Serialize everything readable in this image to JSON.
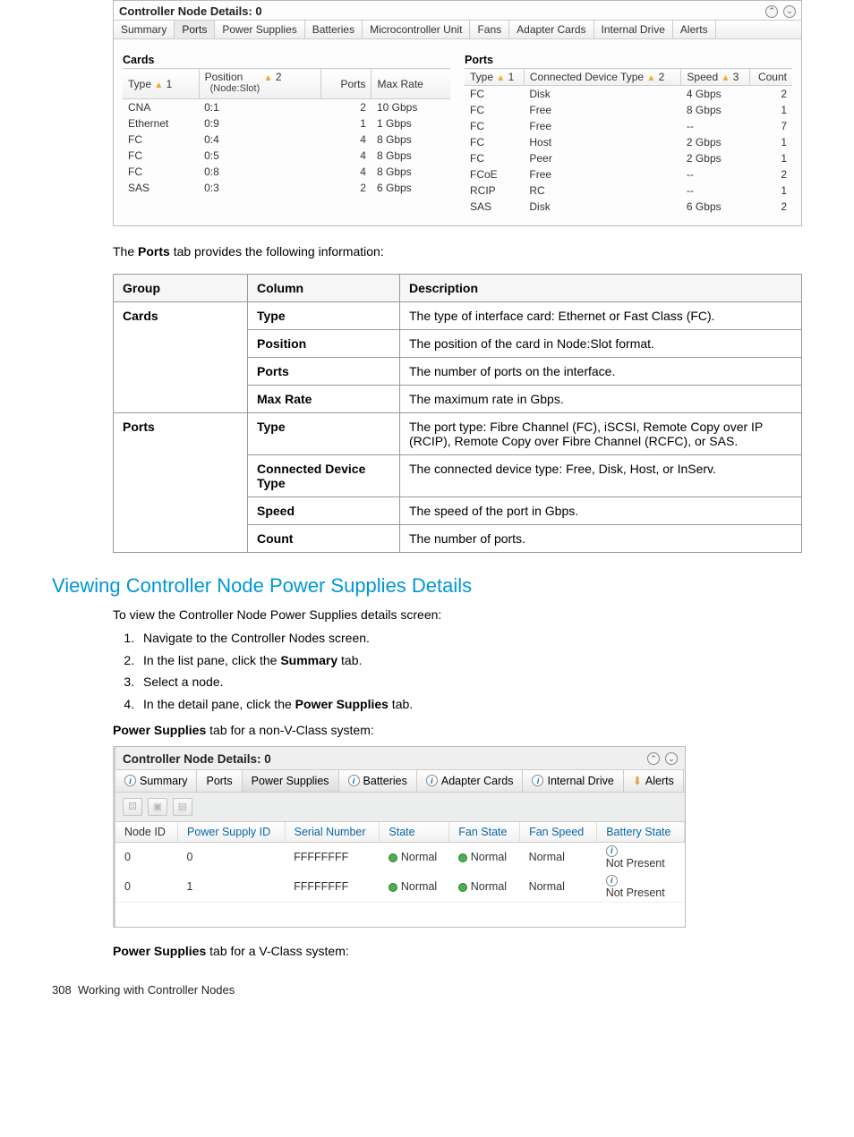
{
  "panel1": {
    "title": "Controller Node Details: 0",
    "tabs": [
      "Summary",
      "Ports",
      "Power Supplies",
      "Batteries",
      "Microcontroller Unit",
      "Fans",
      "Adapter Cards",
      "Internal Drive",
      "Alerts"
    ],
    "active_tab_index": 1,
    "cards": {
      "heading": "Cards",
      "headers": {
        "type": "Type",
        "pos": "Position",
        "pos_sub": "(Node:Slot)",
        "ports": "Ports",
        "rate": "Max Rate",
        "s1": "1",
        "s2": "2"
      },
      "rows": [
        {
          "type": "CNA",
          "pos": "0:1",
          "ports": "2",
          "rate": "10 Gbps"
        },
        {
          "type": "Ethernet",
          "pos": "0:9",
          "ports": "1",
          "rate": "1 Gbps"
        },
        {
          "type": "FC",
          "pos": "0:4",
          "ports": "4",
          "rate": "8 Gbps"
        },
        {
          "type": "FC",
          "pos": "0:5",
          "ports": "4",
          "rate": "8 Gbps"
        },
        {
          "type": "FC",
          "pos": "0:8",
          "ports": "4",
          "rate": "8 Gbps"
        },
        {
          "type": "SAS",
          "pos": "0:3",
          "ports": "2",
          "rate": "6 Gbps"
        }
      ]
    },
    "ports": {
      "heading": "Ports",
      "headers": {
        "type": "Type",
        "cdt": "Connected Device Type",
        "speed": "Speed",
        "count": "Count",
        "s1": "1",
        "s2": "2",
        "s3": "3"
      },
      "rows": [
        {
          "type": "FC",
          "cdt": "Disk",
          "speed": "4 Gbps",
          "count": "2"
        },
        {
          "type": "FC",
          "cdt": "Free",
          "speed": "8 Gbps",
          "count": "1"
        },
        {
          "type": "FC",
          "cdt": "Free",
          "speed": "--",
          "count": "7"
        },
        {
          "type": "FC",
          "cdt": "Host",
          "speed": "2 Gbps",
          "count": "1"
        },
        {
          "type": "FC",
          "cdt": "Peer",
          "speed": "2 Gbps",
          "count": "1"
        },
        {
          "type": "FCoE",
          "cdt": "Free",
          "speed": "--",
          "count": "2"
        },
        {
          "type": "RCIP",
          "cdt": "RC",
          "speed": "--",
          "count": "1"
        },
        {
          "type": "SAS",
          "cdt": "Disk",
          "speed": "6 Gbps",
          "count": "2"
        }
      ]
    }
  },
  "ports_sentence": {
    "pre": "The ",
    "b": "Ports",
    "post": " tab provides the following information:"
  },
  "def_table": {
    "head": {
      "group": "Group",
      "column": "Column",
      "desc": "Description"
    },
    "rows": [
      {
        "group": "Cards",
        "column": "Type",
        "desc": "The type of interface card: Ethernet or Fast Class (FC)."
      },
      {
        "group": "",
        "column": "Position",
        "desc": "The position of the card in Node:Slot format."
      },
      {
        "group": "",
        "column": "Ports",
        "desc": "The number of ports on the interface."
      },
      {
        "group": "",
        "column": "Max Rate",
        "desc": "The maximum rate in Gbps."
      },
      {
        "group": "Ports",
        "column": "Type",
        "desc": "The port type: Fibre Channel (FC), iSCSI, Remote Copy over IP (RCIP), Remote Copy over Fibre Channel (RCFC), or SAS."
      },
      {
        "group": "",
        "column": "Connected Device Type",
        "desc": "The connected device type: Free, Disk, Host, or InServ."
      },
      {
        "group": "",
        "column": "Speed",
        "desc": "The speed of the port in Gbps."
      },
      {
        "group": "",
        "column": "Count",
        "desc": "The number of ports."
      }
    ]
  },
  "section": {
    "heading": "Viewing Controller Node Power Supplies Details",
    "intro": "To view the Controller Node Power Supplies details screen:",
    "steps": [
      "Navigate to the Controller Nodes screen.",
      {
        "pre": "In the list pane, click the ",
        "b": "Summary",
        "post": " tab."
      },
      "Select a node.",
      {
        "pre": "In the detail pane, click the ",
        "b": "Power Supplies",
        "post": " tab."
      }
    ],
    "caption1": {
      "b": "Power Supplies",
      "post": " tab for a non-V-Class system:"
    },
    "caption2": {
      "b": "Power Supplies",
      "post": " tab for a V-Class system:"
    }
  },
  "panel2": {
    "title": "Controller Node Details: 0",
    "tabs": [
      "Summary",
      "Ports",
      "Power Supplies",
      "Batteries",
      "Adapter Cards",
      "Internal Drive",
      "Alerts"
    ],
    "active_tab_index": 2,
    "headers": [
      "Node ID",
      "Power Supply ID",
      "Serial Number",
      "State",
      "Fan State",
      "Fan Speed",
      "Battery State"
    ],
    "rows": [
      {
        "node": "0",
        "ps": "0",
        "sn": "FFFFFFFF",
        "state": "Normal",
        "fstate": "Normal",
        "fspeed": "Normal",
        "bat": "Not Present"
      },
      {
        "node": "0",
        "ps": "1",
        "sn": "FFFFFFFF",
        "state": "Normal",
        "fstate": "Normal",
        "fspeed": "Normal",
        "bat": "Not Present"
      }
    ]
  },
  "footer": {
    "page": "308",
    "title": "Working with Controller Nodes"
  }
}
